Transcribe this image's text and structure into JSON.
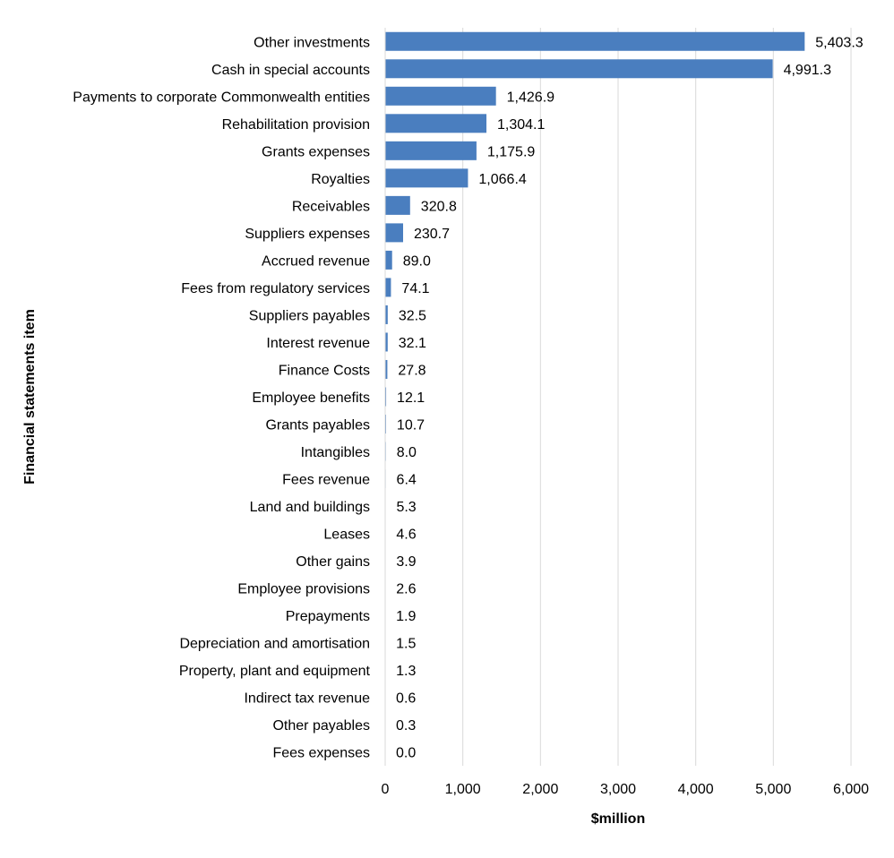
{
  "chart_data": {
    "type": "bar",
    "orientation": "horizontal",
    "xlabel": "$million",
    "ylabel": "Financial statements item",
    "xlim": [
      0,
      6000
    ],
    "x_ticks": [
      0,
      1000,
      2000,
      3000,
      4000,
      5000,
      6000
    ],
    "x_tick_labels": [
      "0",
      "1,000",
      "2,000",
      "3,000",
      "4,000",
      "5,000",
      "6,000"
    ],
    "grid": "vertical",
    "legend": "none",
    "bar_color": "#4a7ebf",
    "grid_color": "#d9d9d9",
    "categories": [
      "Other investments",
      "Cash in special accounts",
      "Payments to corporate Commonwealth entities",
      "Rehabilitation provision",
      "Grants expenses",
      "Royalties",
      "Receivables",
      "Suppliers expenses",
      "Accrued revenue",
      "Fees from regulatory services",
      "Suppliers payables",
      "Interest revenue",
      "Finance Costs",
      "Employee benefits",
      "Grants payables",
      "Intangibles",
      "Fees revenue",
      "Land and buildings",
      "Leases",
      "Other gains",
      "Employee provisions",
      "Prepayments",
      "Depreciation and amortisation",
      "Property, plant and equipment",
      "Indirect tax revenue",
      "Other payables",
      "Fees expenses"
    ],
    "values": [
      5403.3,
      4991.3,
      1426.9,
      1304.1,
      1175.9,
      1066.4,
      320.8,
      230.7,
      89.0,
      74.1,
      32.5,
      32.1,
      27.8,
      12.1,
      10.7,
      8.0,
      6.4,
      5.3,
      4.6,
      3.9,
      2.6,
      1.9,
      1.5,
      1.3,
      0.6,
      0.3,
      0.0
    ],
    "value_labels": [
      "5,403.3",
      "4,991.3",
      "1,426.9",
      "1,304.1",
      "1,175.9",
      "1,066.4",
      "320.8",
      "230.7",
      "89.0",
      "74.1",
      "32.5",
      "32.1",
      "27.8",
      "12.1",
      "10.7",
      "8.0",
      "6.4",
      "5.3",
      "4.6",
      "3.9",
      "2.6",
      "1.9",
      "1.5",
      "1.3",
      "0.6",
      "0.3",
      "0.0"
    ]
  }
}
